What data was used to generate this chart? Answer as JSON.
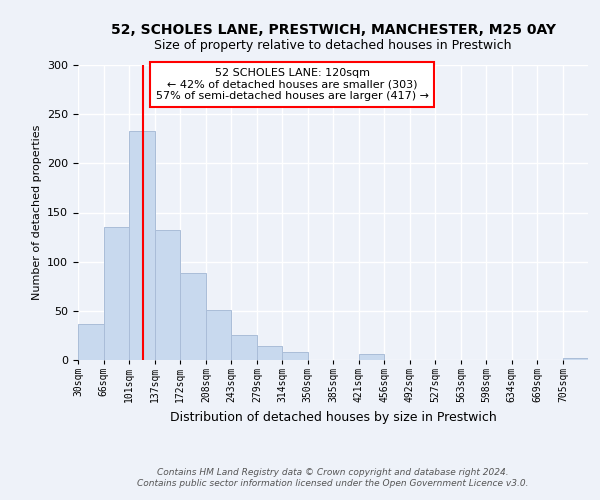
{
  "title1": "52, SCHOLES LANE, PRESTWICH, MANCHESTER, M25 0AY",
  "title2": "Size of property relative to detached houses in Prestwich",
  "xlabel": "Distribution of detached houses by size in Prestwich",
  "ylabel": "Number of detached properties",
  "bar_color": "#c8d9ee",
  "bar_edgecolor": "#aabdd8",
  "vline_x": 120,
  "vline_color": "red",
  "annotation_title": "52 SCHOLES LANE: 120sqm",
  "annotation_line1": "← 42% of detached houses are smaller (303)",
  "annotation_line2": "57% of semi-detached houses are larger (417) →",
  "annotation_box_color": "white",
  "annotation_box_edgecolor": "red",
  "bin_edges": [
    30,
    66,
    101,
    137,
    172,
    208,
    243,
    279,
    314,
    350,
    385,
    421,
    456,
    492,
    527,
    563,
    598,
    634,
    669,
    705,
    740
  ],
  "bin_counts": [
    37,
    135,
    233,
    132,
    88,
    51,
    25,
    14,
    8,
    0,
    0,
    6,
    0,
    0,
    0,
    0,
    0,
    0,
    0,
    2
  ],
  "ylim": [
    0,
    300
  ],
  "yticks": [
    0,
    50,
    100,
    150,
    200,
    250,
    300
  ],
  "footer1": "Contains HM Land Registry data © Crown copyright and database right 2024.",
  "footer2": "Contains public sector information licensed under the Open Government Licence v3.0.",
  "background_color": "#eef2f9",
  "grid_color": "white",
  "title_fontsize": 10,
  "subtitle_fontsize": 9,
  "ylabel_fontsize": 8,
  "xlabel_fontsize": 9,
  "annot_fontsize": 8,
  "footer_fontsize": 6.5
}
